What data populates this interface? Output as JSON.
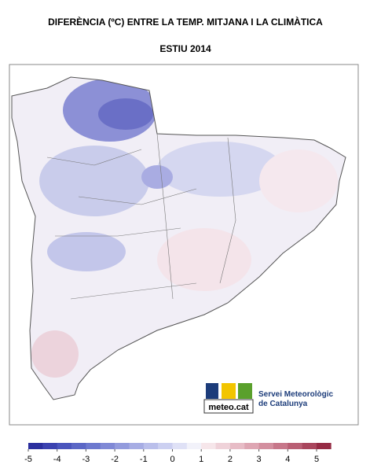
{
  "title": "DIFERÈNCIA (ºC) ENTRE LA TEMP. MITJANA I LA CLIMÀTICA",
  "subtitle": "ESTIU 2014",
  "logo": {
    "brand": "meteo.cat",
    "org_line1": "Servei Meteorològic",
    "org_line2": "de Catalunya"
  },
  "legend": {
    "range": [
      -5,
      5.5
    ],
    "ticks": [
      -5,
      -4,
      -3,
      -2,
      -1,
      0,
      1,
      2,
      3,
      4,
      5
    ],
    "colors": [
      "#2b2f9e",
      "#3b42b0",
      "#4a55bd",
      "#5b67c6",
      "#6d79cf",
      "#8089d6",
      "#939bdd",
      "#a7ade4",
      "#babfeb",
      "#ccd0f1",
      "#dfe1f6",
      "#f2f2fa",
      "#f6e6ea",
      "#efd2d9",
      "#e7bcc6",
      "#deA6b3",
      "#d38f9f",
      "#c7778a",
      "#b95f74",
      "#a9465d",
      "#952b44"
    ]
  }
}
